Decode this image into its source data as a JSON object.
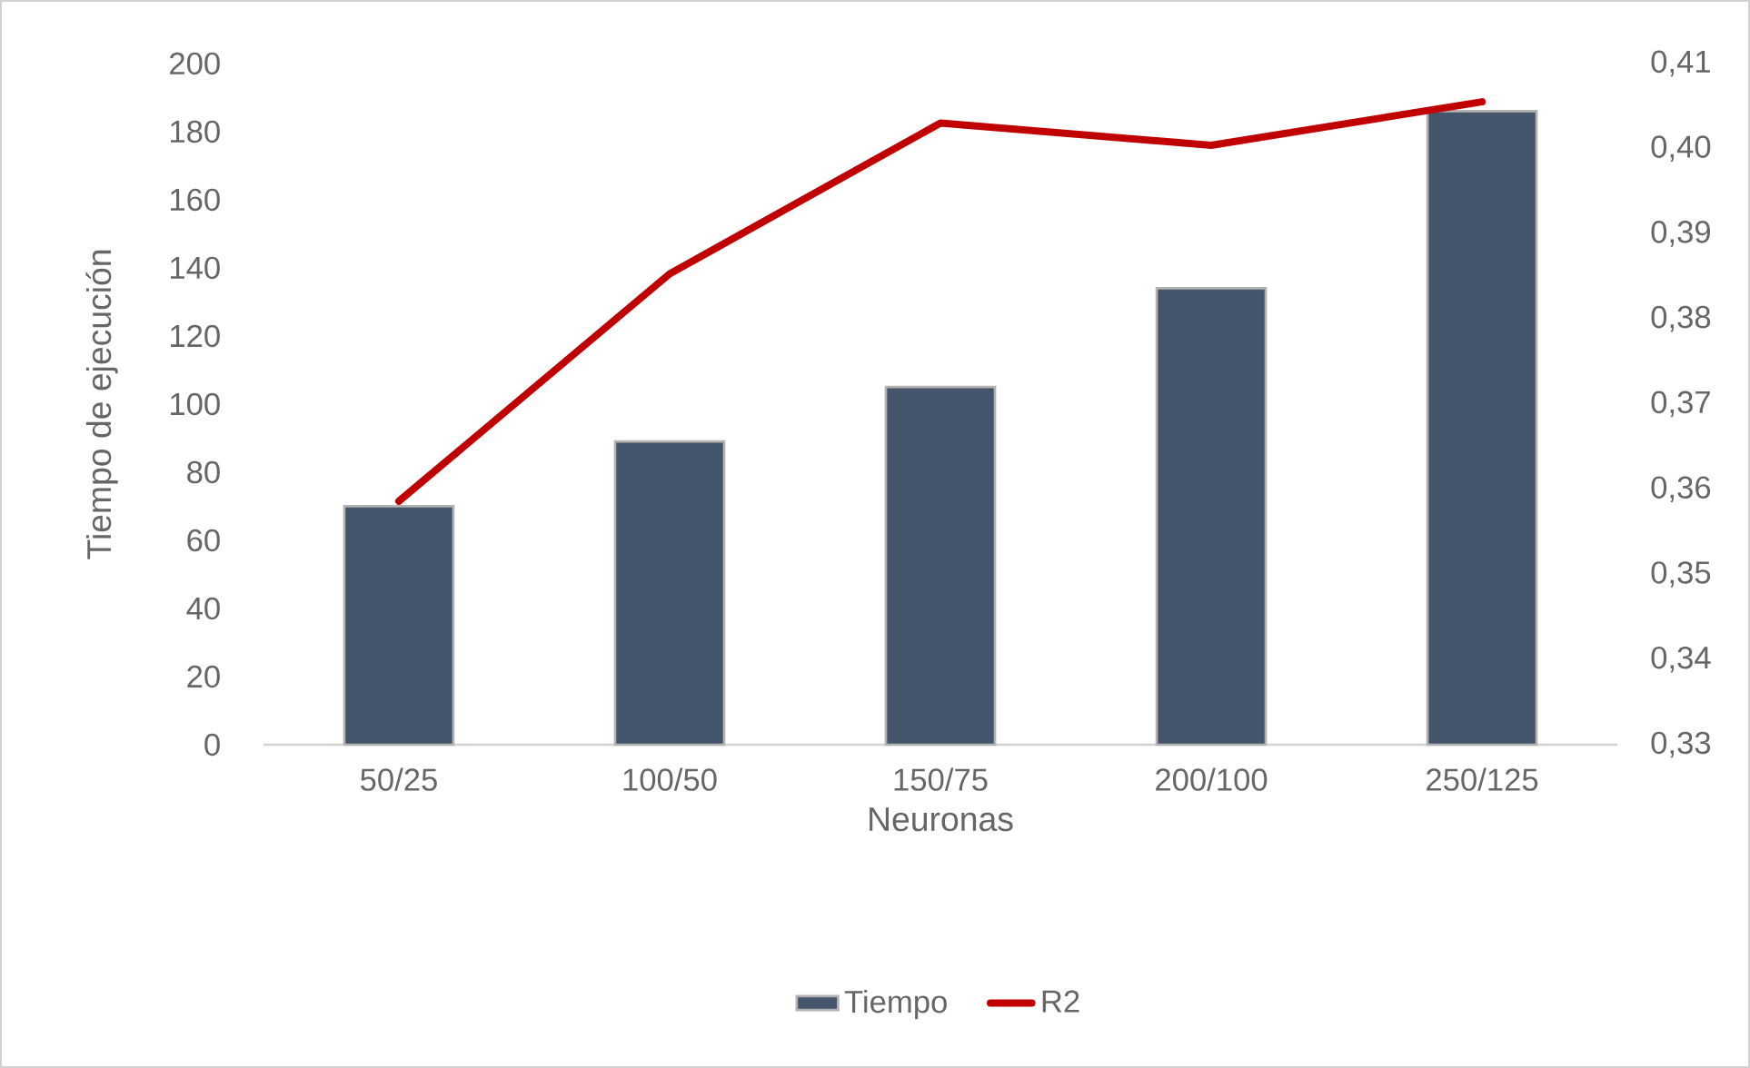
{
  "chart_data": {
    "type": "bar",
    "xlabel": "Neuronas",
    "ylabel": "Tiempo de ejecución",
    "categories": [
      "50/25",
      "100/50",
      "150/75",
      "200/100",
      "250/125"
    ],
    "series": [
      {
        "name": "Tiempo",
        "color": "#44546a",
        "values": [
          70,
          89,
          105,
          134,
          186
        ]
      },
      {
        "name": "R2",
        "type": "line",
        "axis": "y2",
        "color": "#c00000",
        "values": [
          0.3586,
          0.3853,
          0.403,
          0.4004,
          0.4055
        ]
      }
    ],
    "ylim": [
      0,
      200
    ],
    "yticks": [
      0,
      20,
      40,
      60,
      80,
      100,
      120,
      140,
      160,
      180,
      200
    ],
    "y2lim": [
      0.33,
      0.41
    ],
    "y2ticks": [
      {
        "value": 0.33,
        "label": "0,33"
      },
      {
        "value": 0.34,
        "label": "0,34"
      },
      {
        "value": 0.35,
        "label": "0,35"
      },
      {
        "value": 0.36,
        "label": "0,36"
      },
      {
        "value": 0.37,
        "label": "0,37"
      },
      {
        "value": 0.38,
        "label": "0,38"
      },
      {
        "value": 0.39,
        "label": "0,39"
      },
      {
        "value": 0.4,
        "label": "0,40"
      },
      {
        "value": 0.41,
        "label": "0,41"
      }
    ],
    "legend": "bottom",
    "marker": "none",
    "line_style": "solid"
  }
}
